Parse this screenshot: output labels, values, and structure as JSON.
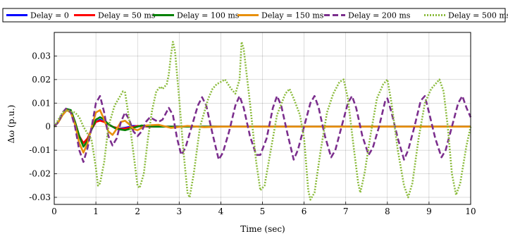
{
  "chart_data": {
    "type": "line",
    "xlabel": "Time (sec)",
    "ylabel": "Δω (p.u.)",
    "xlim": [
      0,
      10
    ],
    "ylim": [
      -0.033,
      0.04
    ],
    "xticks": [
      0,
      1,
      2,
      3,
      4,
      5,
      6,
      7,
      8,
      9,
      10
    ],
    "xtick_labels": [
      "0",
      "1",
      "2",
      "3",
      "4",
      "5",
      "6",
      "7",
      "8",
      "9",
      "10"
    ],
    "yticks": [
      -0.03,
      -0.02,
      -0.01,
      0,
      0.01,
      0.02,
      0.03
    ],
    "ytick_labels": [
      "-0.03",
      "-0.02",
      "-0.01",
      "0",
      "0.01",
      "0.02",
      "0.03"
    ],
    "grid": true,
    "legend_position": "top",
    "series": [
      {
        "name": "Delay = 0",
        "color": "#0000ff",
        "dash": "solid",
        "points": [
          [
            0,
            0
          ],
          [
            0.1,
            0.002
          ],
          [
            0.2,
            0.005
          ],
          [
            0.3,
            0.007
          ],
          [
            0.4,
            0.006
          ],
          [
            0.5,
            0.001
          ],
          [
            0.6,
            -0.004
          ],
          [
            0.7,
            -0.007
          ],
          [
            0.8,
            -0.005
          ],
          [
            0.9,
            -0.001
          ],
          [
            1.0,
            0.002
          ],
          [
            1.1,
            0.003
          ],
          [
            1.2,
            0.002
          ],
          [
            1.3,
            0.001
          ],
          [
            1.5,
            -0.001
          ],
          [
            1.7,
            -0.0005
          ],
          [
            1.9,
            0.0003
          ],
          [
            2.3,
            0
          ],
          [
            3,
            0
          ],
          [
            10,
            0
          ]
        ]
      },
      {
        "name": "Delay = 50 ms",
        "color": "#ff0000",
        "dash": "solid",
        "points": [
          [
            0,
            0
          ],
          [
            0.1,
            0.002
          ],
          [
            0.2,
            0.005
          ],
          [
            0.3,
            0.007
          ],
          [
            0.4,
            0.0065
          ],
          [
            0.5,
            0.002
          ],
          [
            0.6,
            -0.004
          ],
          [
            0.7,
            -0.007
          ],
          [
            0.8,
            -0.005
          ],
          [
            0.9,
            -0.001
          ],
          [
            1.0,
            0.002
          ],
          [
            1.1,
            0.0025
          ],
          [
            1.2,
            0.002
          ],
          [
            1.4,
            0
          ],
          [
            1.6,
            -0.001
          ],
          [
            1.8,
            -0.0005
          ],
          [
            2.0,
            0.0003
          ],
          [
            2.4,
            0
          ],
          [
            3,
            0
          ],
          [
            10,
            0
          ]
        ]
      },
      {
        "name": "Delay = 100 ms",
        "color": "#008000",
        "dash": "solid",
        "points": [
          [
            0,
            0
          ],
          [
            0.1,
            0.002
          ],
          [
            0.2,
            0.005
          ],
          [
            0.3,
            0.0075
          ],
          [
            0.4,
            0.007
          ],
          [
            0.5,
            0.002
          ],
          [
            0.6,
            -0.004
          ],
          [
            0.7,
            -0.0085
          ],
          [
            0.8,
            -0.006
          ],
          [
            0.9,
            -0.001
          ],
          [
            1.0,
            0.003
          ],
          [
            1.1,
            0.004
          ],
          [
            1.2,
            0.003
          ],
          [
            1.3,
            0.001
          ],
          [
            1.5,
            -0.001
          ],
          [
            1.7,
            -0.0015
          ],
          [
            1.9,
            -0.0005
          ],
          [
            2.1,
            0.0005
          ],
          [
            2.4,
            0
          ],
          [
            3,
            0
          ],
          [
            10,
            0
          ]
        ]
      },
      {
        "name": "Delay = 150 ms",
        "color": "#e8900c",
        "dash": "solid",
        "points": [
          [
            0,
            0
          ],
          [
            0.1,
            0.002
          ],
          [
            0.2,
            0.005
          ],
          [
            0.3,
            0.007
          ],
          [
            0.4,
            0.006
          ],
          [
            0.5,
            0.001
          ],
          [
            0.6,
            -0.007
          ],
          [
            0.7,
            -0.011
          ],
          [
            0.8,
            -0.007
          ],
          [
            0.9,
            0.0
          ],
          [
            1.0,
            0.006
          ],
          [
            1.1,
            0.007
          ],
          [
            1.2,
            0.003
          ],
          [
            1.3,
            -0.002
          ],
          [
            1.4,
            -0.0035
          ],
          [
            1.5,
            -0.001
          ],
          [
            1.6,
            0.002
          ],
          [
            1.7,
            0.0025
          ],
          [
            1.8,
            0.001
          ],
          [
            1.9,
            -0.001
          ],
          [
            2.0,
            -0.0015
          ],
          [
            2.2,
            0.0005
          ],
          [
            2.5,
            0.0008
          ],
          [
            2.8,
            -0.0005
          ],
          [
            3.2,
            0.0003
          ],
          [
            3.6,
            -0.0002
          ],
          [
            4,
            0
          ],
          [
            10,
            0
          ]
        ]
      },
      {
        "name": "Delay = 200 ms",
        "color": "#7b2e8d",
        "dash": "8,4",
        "points": [
          [
            0,
            0
          ],
          [
            0.1,
            0.002
          ],
          [
            0.2,
            0.006
          ],
          [
            0.3,
            0.008
          ],
          [
            0.4,
            0.006
          ],
          [
            0.5,
            0.0
          ],
          [
            0.6,
            -0.01
          ],
          [
            0.7,
            -0.015
          ],
          [
            0.8,
            -0.009
          ],
          [
            0.9,
            0.0
          ],
          [
            1.0,
            0.01
          ],
          [
            1.1,
            0.013
          ],
          [
            1.2,
            0.006
          ],
          [
            1.3,
            -0.004
          ],
          [
            1.4,
            -0.008
          ],
          [
            1.5,
            -0.005
          ],
          [
            1.6,
            0.002
          ],
          [
            1.7,
            0.006
          ],
          [
            1.8,
            0.003
          ],
          [
            1.9,
            -0.002
          ],
          [
            2.0,
            -0.004
          ],
          [
            2.1,
            -0.002
          ],
          [
            2.2,
            0.002
          ],
          [
            2.3,
            0.004
          ],
          [
            2.4,
            0.003
          ],
          [
            2.5,
            0.002
          ],
          [
            2.6,
            0.003
          ],
          [
            2.75,
            0.008
          ],
          [
            2.85,
            0.005
          ],
          [
            2.95,
            -0.005
          ],
          [
            3.05,
            -0.012
          ],
          [
            3.15,
            -0.009
          ],
          [
            3.3,
            0.0
          ],
          [
            3.45,
            0.009
          ],
          [
            3.55,
            0.0125
          ],
          [
            3.65,
            0.009
          ],
          [
            3.8,
            -0.003
          ],
          [
            3.95,
            -0.014
          ],
          [
            4.05,
            -0.011
          ],
          [
            4.2,
            -0.002
          ],
          [
            4.35,
            0.009
          ],
          [
            4.45,
            0.013
          ],
          [
            4.55,
            0.008
          ],
          [
            4.7,
            -0.004
          ],
          [
            4.85,
            -0.012
          ],
          [
            4.95,
            -0.012
          ],
          [
            5.1,
            -0.005
          ],
          [
            5.25,
            0.008
          ],
          [
            5.35,
            0.013
          ],
          [
            5.45,
            0.009
          ],
          [
            5.6,
            -0.003
          ],
          [
            5.75,
            -0.014
          ],
          [
            5.85,
            -0.01
          ],
          [
            6.0,
            0.0
          ],
          [
            6.15,
            0.01
          ],
          [
            6.25,
            0.013
          ],
          [
            6.35,
            0.008
          ],
          [
            6.5,
            -0.004
          ],
          [
            6.65,
            -0.013
          ],
          [
            6.75,
            -0.01
          ],
          [
            6.9,
            0.0
          ],
          [
            7.05,
            0.01
          ],
          [
            7.15,
            0.013
          ],
          [
            7.25,
            0.008
          ],
          [
            7.4,
            -0.004
          ],
          [
            7.55,
            -0.012
          ],
          [
            7.65,
            -0.009
          ],
          [
            7.8,
            0.0
          ],
          [
            7.95,
            0.011
          ],
          [
            8.0,
            0.012
          ],
          [
            8.1,
            0.006
          ],
          [
            8.25,
            -0.005
          ],
          [
            8.4,
            -0.014
          ],
          [
            8.5,
            -0.01
          ],
          [
            8.65,
            0.0
          ],
          [
            8.8,
            0.011
          ],
          [
            8.9,
            0.013
          ],
          [
            9.0,
            0.006
          ],
          [
            9.15,
            -0.005
          ],
          [
            9.3,
            -0.013
          ],
          [
            9.4,
            -0.01
          ],
          [
            9.55,
            0.0
          ],
          [
            9.7,
            0.01
          ],
          [
            9.8,
            0.013
          ],
          [
            9.9,
            0.008
          ],
          [
            10.0,
            0.004
          ]
        ]
      },
      {
        "name": "Delay = 500 ms",
        "color": "#8bbb3c",
        "dash": "2,2",
        "points": [
          [
            0,
            0
          ],
          [
            0.1,
            0.003
          ],
          [
            0.2,
            0.006
          ],
          [
            0.3,
            0.007
          ],
          [
            0.4,
            0.0065
          ],
          [
            0.5,
            0.006
          ],
          [
            0.6,
            0.004
          ],
          [
            0.7,
            0.0
          ],
          [
            0.8,
            -0.003
          ],
          [
            0.85,
            -0.004
          ],
          [
            0.9,
            -0.006
          ],
          [
            1.0,
            -0.0175
          ],
          [
            1.05,
            -0.025
          ],
          [
            1.1,
            -0.024
          ],
          [
            1.2,
            -0.015
          ],
          [
            1.3,
            0.0
          ],
          [
            1.45,
            0.009
          ],
          [
            1.55,
            0.012
          ],
          [
            1.65,
            0.015
          ],
          [
            1.7,
            0.0145
          ],
          [
            1.8,
            0.003
          ],
          [
            1.9,
            -0.011
          ],
          [
            2.0,
            -0.025
          ],
          [
            2.05,
            -0.026
          ],
          [
            2.15,
            -0.02
          ],
          [
            2.25,
            -0.005
          ],
          [
            2.35,
            0.007
          ],
          [
            2.45,
            0.015
          ],
          [
            2.55,
            0.017
          ],
          [
            2.6,
            0.016
          ],
          [
            2.7,
            0.018
          ],
          [
            2.75,
            0.022
          ],
          [
            2.8,
            0.03
          ],
          [
            2.85,
            0.036
          ],
          [
            2.9,
            0.032
          ],
          [
            3.0,
            0.012
          ],
          [
            3.1,
            -0.01
          ],
          [
            3.2,
            -0.028
          ],
          [
            3.25,
            -0.03
          ],
          [
            3.35,
            -0.02
          ],
          [
            3.5,
            0.0
          ],
          [
            3.7,
            0.012
          ],
          [
            3.8,
            0.016
          ],
          [
            3.9,
            0.018
          ],
          [
            4.0,
            0.019
          ],
          [
            4.1,
            0.02
          ],
          [
            4.25,
            0.016
          ],
          [
            4.35,
            0.014
          ],
          [
            4.45,
            0.02
          ],
          [
            4.5,
            0.036
          ],
          [
            4.55,
            0.033
          ],
          [
            4.7,
            0.01
          ],
          [
            4.85,
            -0.015
          ],
          [
            4.95,
            -0.027
          ],
          [
            5.05,
            -0.025
          ],
          [
            5.2,
            -0.01
          ],
          [
            5.35,
            0.005
          ],
          [
            5.55,
            0.014
          ],
          [
            5.65,
            0.016
          ],
          [
            5.75,
            0.012
          ],
          [
            5.9,
            0.005
          ],
          [
            6.0,
            -0.005
          ],
          [
            6.1,
            -0.027
          ],
          [
            6.15,
            -0.031
          ],
          [
            6.25,
            -0.028
          ],
          [
            6.4,
            -0.01
          ],
          [
            6.55,
            0.006
          ],
          [
            6.7,
            0.014
          ],
          [
            6.85,
            0.019
          ],
          [
            6.95,
            0.02
          ],
          [
            7.05,
            0.012
          ],
          [
            7.2,
            -0.01
          ],
          [
            7.3,
            -0.024
          ],
          [
            7.35,
            -0.028
          ],
          [
            7.45,
            -0.02
          ],
          [
            7.6,
            -0.003
          ],
          [
            7.75,
            0.012
          ],
          [
            7.9,
            0.018
          ],
          [
            8.0,
            0.02
          ],
          [
            8.1,
            0.01
          ],
          [
            8.25,
            -0.01
          ],
          [
            8.4,
            -0.025
          ],
          [
            8.5,
            -0.03
          ],
          [
            8.6,
            -0.024
          ],
          [
            8.75,
            -0.005
          ],
          [
            8.9,
            0.01
          ],
          [
            9.05,
            0.016
          ],
          [
            9.15,
            0.018
          ],
          [
            9.25,
            0.02
          ],
          [
            9.35,
            0.015
          ],
          [
            9.45,
            0.0
          ],
          [
            9.55,
            -0.02
          ],
          [
            9.65,
            -0.029
          ],
          [
            9.75,
            -0.024
          ],
          [
            9.9,
            -0.008
          ],
          [
            10.0,
            0.0
          ]
        ]
      }
    ]
  }
}
